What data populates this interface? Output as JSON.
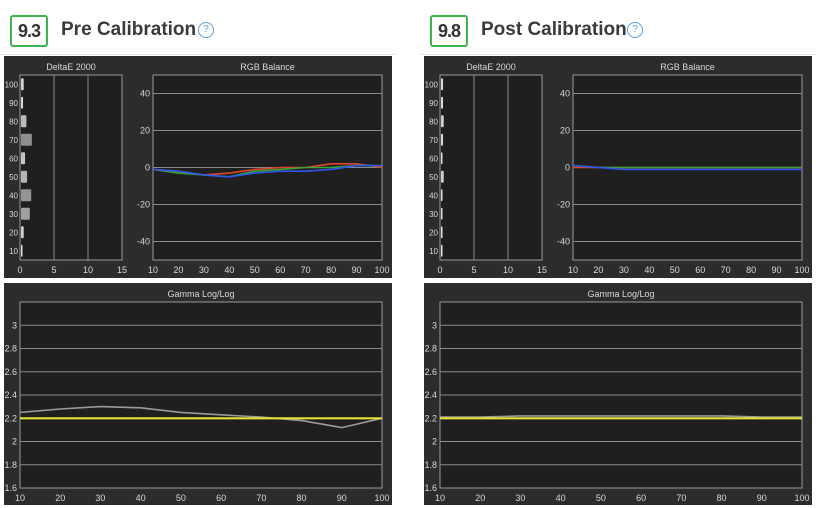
{
  "panels": [
    {
      "score": "9.3",
      "title": "Pre Calibration",
      "help_icon": "question-circle-icon",
      "charts": [
        {
          "type": "bar",
          "title": "DeltaE 2000",
          "xlim": [
            0,
            15
          ],
          "xticks": [
            "0",
            "5",
            "10",
            "15"
          ],
          "categories": [
            "100",
            "90",
            "80",
            "70",
            "60",
            "50",
            "40",
            "30",
            "20",
            "10"
          ],
          "values": [
            0.4,
            0.3,
            0.8,
            1.6,
            0.6,
            0.9,
            1.5,
            1.3,
            0.4,
            0.2
          ],
          "grid": true
        },
        {
          "type": "line",
          "title": "RGB Balance",
          "x": [
            10,
            20,
            30,
            40,
            50,
            60,
            70,
            80,
            90,
            100
          ],
          "xlim": [
            10,
            100
          ],
          "ylim": [
            -50,
            50
          ],
          "yticks": [
            "40",
            "20",
            "0",
            "-20",
            "-40"
          ],
          "xticks": [
            "10",
            "20",
            "30",
            "40",
            "50",
            "60",
            "70",
            "80",
            "90",
            "100"
          ],
          "series": [
            {
              "color": "#e0452b",
              "values": [
                -1,
                -2,
                -4,
                -3,
                -1,
                0,
                0,
                2,
                2,
                0
              ]
            },
            {
              "color": "#3aa43a",
              "values": [
                -1,
                -3,
                -4,
                -5,
                -2,
                -1,
                0,
                0,
                1,
                1
              ]
            },
            {
              "color": "#2f56e8",
              "values": [
                -1,
                -2,
                -4,
                -5,
                -3,
                -2,
                -2,
                -1,
                1,
                1
              ]
            }
          ],
          "grid": true
        },
        {
          "type": "line",
          "title": "Gamma Log/Log",
          "x": [
            10,
            20,
            30,
            40,
            50,
            60,
            70,
            80,
            90,
            100
          ],
          "xlim": [
            10,
            100
          ],
          "ylim": [
            1.6,
            3.2
          ],
          "yticks": [
            "3",
            "2.8",
            "2.6",
            "2.4",
            "2.2",
            "2",
            "1.8",
            "1.6"
          ],
          "xticks": [
            "10",
            "20",
            "30",
            "40",
            "50",
            "60",
            "70",
            "80",
            "90",
            "100"
          ],
          "series": [
            {
              "color": "#9a9a9a",
              "values": [
                2.25,
                2.28,
                2.3,
                2.29,
                2.25,
                2.23,
                2.21,
                2.18,
                2.12,
                2.2
              ]
            },
            {
              "color": "#e4e034",
              "values": [
                2.2,
                2.2,
                2.2,
                2.2,
                2.2,
                2.2,
                2.2,
                2.2,
                2.2,
                2.2
              ]
            }
          ],
          "grid": true
        }
      ]
    },
    {
      "score": "9.8",
      "title": "Post Calibration",
      "help_icon": "question-circle-icon",
      "charts": [
        {
          "type": "bar",
          "title": "DeltaE 2000",
          "xlim": [
            0,
            15
          ],
          "xticks": [
            "0",
            "5",
            "10",
            "15"
          ],
          "categories": [
            "100",
            "90",
            "80",
            "70",
            "60",
            "50",
            "40",
            "30",
            "20",
            "10"
          ],
          "values": [
            0.3,
            0.3,
            0.4,
            0.3,
            0.2,
            0.4,
            0.2,
            0.2,
            0.1,
            0.1
          ],
          "grid": true
        },
        {
          "type": "line",
          "title": "RGB Balance",
          "x": [
            10,
            20,
            30,
            40,
            50,
            60,
            70,
            80,
            90,
            100
          ],
          "xlim": [
            10,
            100
          ],
          "ylim": [
            -50,
            50
          ],
          "yticks": [
            "40",
            "20",
            "0",
            "-20",
            "-40"
          ],
          "xticks": [
            "10",
            "20",
            "30",
            "40",
            "50",
            "60",
            "70",
            "80",
            "90",
            "100"
          ],
          "series": [
            {
              "color": "#e0452b",
              "values": [
                0,
                0,
                0,
                0,
                0,
                0,
                0,
                0,
                0,
                0
              ]
            },
            {
              "color": "#3aa43a",
              "values": [
                1,
                0,
                0,
                0,
                0,
                0,
                0,
                0,
                0,
                0
              ]
            },
            {
              "color": "#2f56e8",
              "values": [
                1,
                0,
                -1,
                -1,
                -1,
                -1,
                -1,
                -1,
                -1,
                -1
              ]
            }
          ],
          "grid": true
        },
        {
          "type": "line",
          "title": "Gamma Log/Log",
          "x": [
            10,
            20,
            30,
            40,
            50,
            60,
            70,
            80,
            90,
            100
          ],
          "xlim": [
            10,
            100
          ],
          "ylim": [
            1.6,
            3.2
          ],
          "yticks": [
            "3",
            "2.8",
            "2.6",
            "2.4",
            "2.2",
            "2",
            "1.8",
            "1.6"
          ],
          "xticks": [
            "10",
            "20",
            "30",
            "40",
            "50",
            "60",
            "70",
            "80",
            "90",
            "100"
          ],
          "series": [
            {
              "color": "#9a9a9a",
              "values": [
                2.21,
                2.21,
                2.22,
                2.22,
                2.22,
                2.22,
                2.22,
                2.22,
                2.21,
                2.21
              ]
            },
            {
              "color": "#e4e034",
              "values": [
                2.2,
                2.2,
                2.2,
                2.2,
                2.2,
                2.2,
                2.2,
                2.2,
                2.2,
                2.2
              ]
            }
          ],
          "grid": true
        }
      ]
    }
  ]
}
